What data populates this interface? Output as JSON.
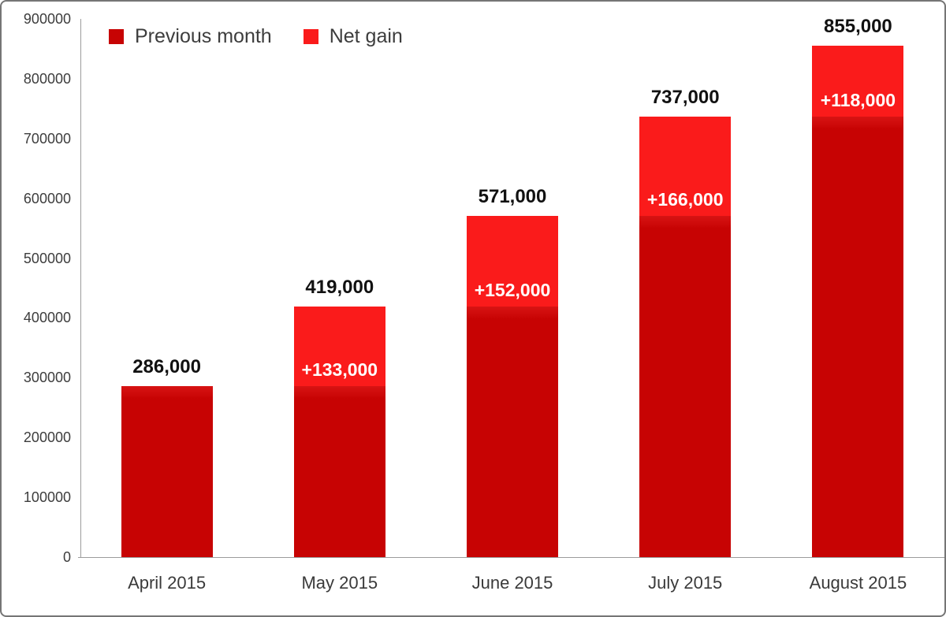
{
  "chart_data": {
    "type": "bar",
    "stacked": true,
    "title": "",
    "xlabel": "",
    "ylabel": "",
    "categories": [
      "April 2015",
      "May 2015",
      "June 2015",
      "July 2015",
      "August 2015"
    ],
    "series": [
      {
        "name": "Previous month",
        "color": "#c70303",
        "values": [
          286000,
          286000,
          419000,
          571000,
          737000
        ]
      },
      {
        "name": "Net gain",
        "color": "#fa1b1b",
        "values": [
          0,
          133000,
          152000,
          166000,
          118000
        ]
      }
    ],
    "totals": [
      286000,
      419000,
      571000,
      737000,
      855000
    ],
    "total_labels": [
      "286,000",
      "419,000",
      "571,000",
      "737,000",
      "855,000"
    ],
    "gain_labels": [
      "",
      "+133,000",
      "+152,000",
      "+166,000",
      "+118,000"
    ],
    "ylim": [
      0,
      900000
    ],
    "ytick_step": 100000,
    "ytick_labels": [
      "0",
      "100000",
      "200000",
      "300000",
      "400000",
      "500000",
      "600000",
      "700000",
      "800000",
      "900000"
    ],
    "grid": false,
    "legend_position": "top-left",
    "colors": {
      "previous_month": "#c70303",
      "net_gain": "#fa1b1b",
      "axis_line": "#9c9c9c",
      "total_label_text": "#111111",
      "gain_label_text": "#ffffff",
      "tick_text": "#3d3d3d",
      "frame_border": "#757575"
    }
  }
}
